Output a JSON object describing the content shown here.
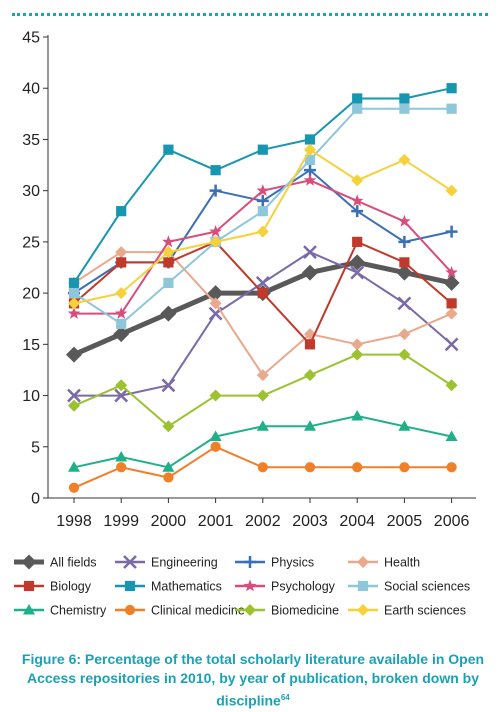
{
  "caption": {
    "text": "Figure 6: Percentage of the total scholarly literature available in Open Access repositories in 2010, by year of publication, broken down by discipline",
    "footnote": "64"
  },
  "chart_data": {
    "type": "line",
    "categories": [
      "1998",
      "1999",
      "2000",
      "2001",
      "2002",
      "2003",
      "2004",
      "2005",
      "2006"
    ],
    "ylim": [
      0,
      45
    ],
    "yticks": [
      0,
      5,
      10,
      15,
      20,
      25,
      30,
      35,
      40,
      45
    ],
    "grid": false,
    "legend_position": "bottom",
    "series": [
      {
        "name": "All fields",
        "color": "#595959",
        "marker": "diamond",
        "width": 5,
        "values": [
          14,
          16,
          18,
          20,
          20,
          22,
          23,
          22,
          21
        ]
      },
      {
        "name": "Engineering",
        "color": "#7a6aa8",
        "marker": "x",
        "width": 2,
        "values": [
          10,
          10,
          11,
          18,
          21,
          24,
          22,
          19,
          15
        ]
      },
      {
        "name": "Physics",
        "color": "#3b6fb6",
        "marker": "plus",
        "width": 2,
        "values": [
          20,
          23,
          23,
          30,
          29,
          32,
          28,
          25,
          26
        ]
      },
      {
        "name": "Health",
        "color": "#e9a98c",
        "marker": "diamond",
        "width": 2,
        "values": [
          21,
          24,
          24,
          19,
          12,
          16,
          15,
          16,
          18
        ]
      },
      {
        "name": "Biology",
        "color": "#c0392b",
        "marker": "square",
        "width": 2,
        "values": [
          19,
          23,
          23,
          25,
          20,
          15,
          25,
          23,
          19
        ]
      },
      {
        "name": "Mathematics",
        "color": "#1696b0",
        "marker": "square",
        "width": 2,
        "values": [
          21,
          28,
          34,
          32,
          34,
          35,
          39,
          39,
          40
        ]
      },
      {
        "name": "Psychology",
        "color": "#d94c7c",
        "marker": "star",
        "width": 2,
        "values": [
          18,
          18,
          25,
          26,
          30,
          31,
          29,
          27,
          22
        ]
      },
      {
        "name": "Social sciences",
        "color": "#8fc7da",
        "marker": "square",
        "width": 2,
        "values": [
          20,
          17,
          21,
          25,
          28,
          33,
          38,
          38,
          38
        ]
      },
      {
        "name": "Chemistry",
        "color": "#1fb08a",
        "marker": "triangle",
        "width": 2,
        "values": [
          3,
          4,
          3,
          6,
          7,
          7,
          8,
          7,
          6
        ]
      },
      {
        "name": "Clinical medicine",
        "color": "#f07f2a",
        "marker": "circle",
        "width": 2,
        "values": [
          1,
          3,
          2,
          5,
          3,
          3,
          3,
          3,
          3
        ]
      },
      {
        "name": "Biomedicine",
        "color": "#9cc22f",
        "marker": "diamond",
        "width": 2,
        "values": [
          9,
          11,
          7,
          10,
          10,
          12,
          14,
          14,
          11
        ]
      },
      {
        "name": "Earth sciences",
        "color": "#f7d13a",
        "marker": "diamond",
        "width": 2,
        "values": [
          19,
          20,
          24,
          25,
          26,
          34,
          31,
          33,
          30
        ]
      }
    ]
  }
}
